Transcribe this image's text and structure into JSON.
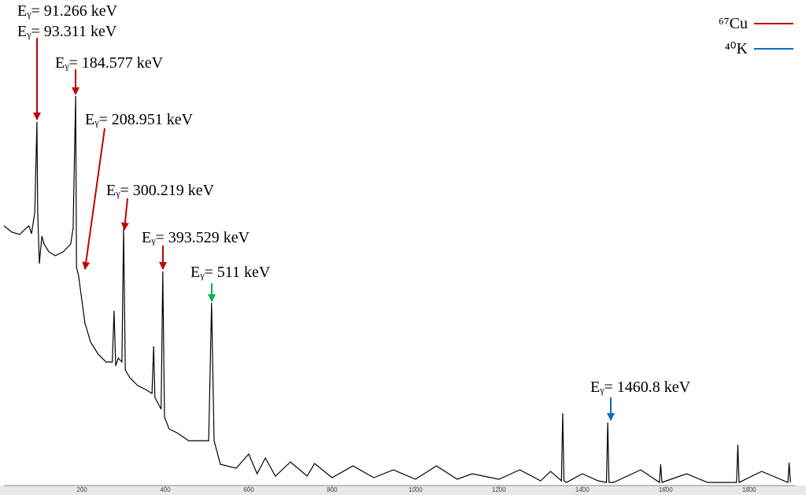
{
  "chart_data": {
    "type": "line",
    "color": "#000000",
    "x": [
      13,
      32,
      51,
      66,
      73,
      79,
      87,
      92,
      94,
      98,
      104,
      109,
      121,
      136,
      155,
      173,
      179,
      185,
      187,
      192,
      207,
      221,
      239,
      258,
      273,
      277,
      281,
      287,
      296,
      300,
      304,
      315,
      334,
      353,
      368,
      372,
      375,
      390,
      394,
      398,
      409,
      428,
      456,
      485,
      504,
      511,
      517,
      532,
      570,
      600,
      620,
      640,
      664,
      700,
      740,
      758,
      800,
      850,
      900,
      947,
      1000,
      1050,
      1100,
      1136,
      1200,
      1250,
      1300,
      1324,
      1350,
      1353,
      1356,
      1362,
      1400,
      1438,
      1458,
      1461,
      1464,
      1475,
      1540,
      1585,
      1588,
      1591,
      1650,
      1700,
      1770,
      1773,
      1776,
      1830,
      1893,
      1896,
      1899
    ],
    "values": [
      330,
      322,
      319,
      327,
      330,
      320,
      347,
      462,
      347,
      282,
      317,
      307,
      297,
      292,
      297,
      307,
      327,
      495,
      277,
      267,
      207,
      182,
      167,
      157,
      157,
      222,
      152,
      162,
      157,
      327,
      147,
      137,
      127,
      122,
      117,
      177,
      112,
      97,
      272,
      87,
      72,
      67,
      57,
      57,
      57,
      232,
      57,
      27,
      22,
      40,
      15,
      35,
      12,
      30,
      12,
      28,
      10,
      25,
      10,
      20,
      8,
      25,
      8,
      15,
      8,
      20,
      6,
      18,
      6,
      92,
      6,
      4,
      15,
      6,
      4,
      80,
      4,
      4,
      20,
      4,
      27,
      4,
      15,
      4,
      4,
      52,
      4,
      18,
      4,
      29,
      4
    ],
    "xlim": [
      13,
      1910
    ],
    "ylim": [
      0,
      620
    ],
    "xticks": [
      200,
      400,
      600,
      800,
      1000,
      1200,
      1400,
      1600,
      1800
    ],
    "annotations": [
      "Eᵧ= 91.266 keV",
      "Eᵧ= 93.311 keV",
      "Eᵧ= 184.577 keV",
      "Eᵧ= 208.951 keV",
      "Eᵧ= 300.219 keV",
      "Eᵧ= 393.529 keV",
      "Eᵧ= 511 keV",
      "Eᵧ= 1460.8 keV"
    ],
    "legend": [
      {
        "name": "⁶⁷Cu",
        "color": "#c00000"
      },
      {
        "name": "⁴⁰K",
        "color": "#0070c0"
      }
    ]
  }
}
